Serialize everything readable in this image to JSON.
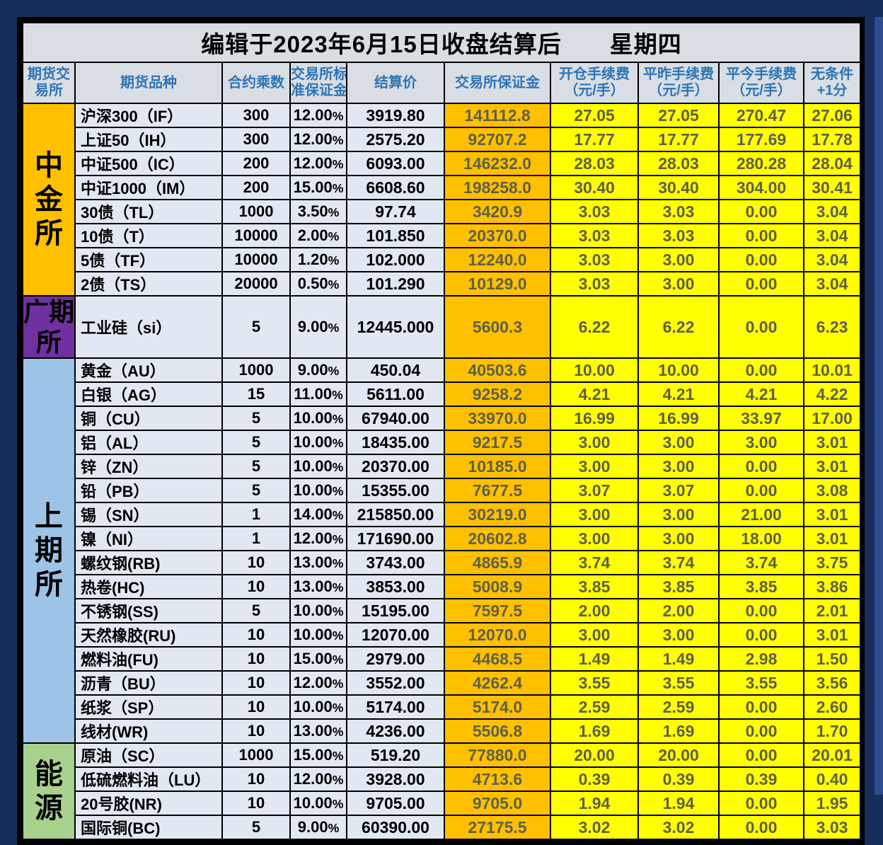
{
  "title": "编辑于2023年6月15日收盘结算后　　星期四",
  "columns": [
    {
      "id": "exchange",
      "lines": [
        "期货交",
        "易所"
      ]
    },
    {
      "id": "product",
      "lines": [
        "期货品种"
      ]
    },
    {
      "id": "multiplier",
      "lines": [
        "合约乘数"
      ]
    },
    {
      "id": "std-margin-rate",
      "lines": [
        "交易所标",
        "准保证金"
      ]
    },
    {
      "id": "settlement-price",
      "lines": [
        "结算价"
      ]
    },
    {
      "id": "exchange-margin",
      "lines": [
        "交易所保证金"
      ]
    },
    {
      "id": "open-fee",
      "lines": [
        "开仓手续费",
        "（元/手）"
      ]
    },
    {
      "id": "close-yesterday-fee",
      "lines": [
        "平昨手续费",
        "（元/手）"
      ]
    },
    {
      "id": "close-today-fee",
      "lines": [
        "平今手续费",
        "（元/手）"
      ]
    },
    {
      "id": "unconditional-plus1",
      "lines": [
        "无条件",
        "+1分"
      ]
    }
  ],
  "colors": {
    "page_bg": "#172E5C",
    "right_strip": "#2C4C8E",
    "header_bg": "#D9DDE4",
    "header_text": "#2E75B6",
    "data_bg": "#E1E8F1",
    "margin_col_bg": "#FFC000",
    "fee_col_bg": "#FFFF00",
    "fee_text": "#5E6047",
    "group_cffex": "#FFC000",
    "group_gfex": "#7030A0",
    "group_shfe": "#9DC3E6",
    "group_ine": "#A9D18E"
  },
  "groups": [
    {
      "name": "中金所",
      "label_lines": [
        "中",
        "金",
        "所"
      ],
      "color": "#FFC000",
      "rows": [
        [
          "沪深300（IF）",
          "300",
          "12.00%",
          "3919.80",
          "141112.8",
          "27.05",
          "27.05",
          "270.47",
          "27.06"
        ],
        [
          "上证50（IH）",
          "300",
          "12.00%",
          "2575.20",
          "92707.2",
          "17.77",
          "17.77",
          "177.69",
          "17.78"
        ],
        [
          "中证500（IC）",
          "200",
          "12.00%",
          "6093.00",
          "146232.0",
          "28.03",
          "28.03",
          "280.28",
          "28.04"
        ],
        [
          "中证1000（IM）",
          "200",
          "15.00%",
          "6608.60",
          "198258.0",
          "30.40",
          "30.40",
          "304.00",
          "30.41"
        ],
        [
          "30债（TL）",
          "1000",
          "3.50%",
          "97.74",
          "3420.9",
          "3.03",
          "3.03",
          "0.00",
          "3.04"
        ],
        [
          "10债（T）",
          "10000",
          "2.00%",
          "101.850",
          "20370.0",
          "3.03",
          "3.03",
          "0.00",
          "3.04"
        ],
        [
          "5债（TF）",
          "10000",
          "1.20%",
          "102.000",
          "12240.0",
          "3.03",
          "3.00",
          "0.00",
          "3.04"
        ],
        [
          "2债（TS）",
          "20000",
          "0.50%",
          "101.290",
          "10129.0",
          "3.03",
          "3.00",
          "0.00",
          "3.04"
        ]
      ]
    },
    {
      "name": "广期所",
      "label_lines": [
        "广期",
        "所"
      ],
      "color": "#7030A0",
      "rows": [
        [
          "工业硅（si）",
          "5",
          "9.00%",
          "12445.000",
          "5600.3",
          "6.22",
          "6.22",
          "0.00",
          "6.23"
        ]
      ]
    },
    {
      "name": "上期所",
      "label_lines": [
        "上",
        "期",
        "所"
      ],
      "color": "#9DC3E6",
      "rows": [
        [
          "黄金（AU）",
          "1000",
          "9.00%",
          "450.04",
          "40503.6",
          "10.00",
          "10.00",
          "0.00",
          "10.01"
        ],
        [
          "白银（AG）",
          "15",
          "11.00%",
          "5611.00",
          "9258.2",
          "4.21",
          "4.21",
          "4.21",
          "4.22"
        ],
        [
          "铜（CU）",
          "5",
          "10.00%",
          "67940.00",
          "33970.0",
          "16.99",
          "16.99",
          "33.97",
          "17.00"
        ],
        [
          "铝（AL）",
          "5",
          "10.00%",
          "18435.00",
          "9217.5",
          "3.00",
          "3.00",
          "3.00",
          "3.01"
        ],
        [
          "锌（ZN）",
          "5",
          "10.00%",
          "20370.00",
          "10185.0",
          "3.00",
          "3.00",
          "0.00",
          "3.01"
        ],
        [
          "铅（PB）",
          "5",
          "10.00%",
          "15355.00",
          "7677.5",
          "3.07",
          "3.07",
          "0.00",
          "3.08"
        ],
        [
          "锡（SN）",
          "1",
          "14.00%",
          "215850.00",
          "30219.0",
          "3.00",
          "3.00",
          "21.00",
          "3.01"
        ],
        [
          "镍（NI）",
          "1",
          "12.00%",
          "171690.00",
          "20602.8",
          "3.00",
          "3.00",
          "18.00",
          "3.01"
        ],
        [
          "螺纹钢(RB)",
          "10",
          "13.00%",
          "3743.00",
          "4865.9",
          "3.74",
          "3.74",
          "3.74",
          "3.75"
        ],
        [
          "热卷(HC)",
          "10",
          "13.00%",
          "3853.00",
          "5008.9",
          "3.85",
          "3.85",
          "3.85",
          "3.86"
        ],
        [
          "不锈钢(SS)",
          "5",
          "10.00%",
          "15195.00",
          "7597.5",
          "2.00",
          "2.00",
          "0.00",
          "2.01"
        ],
        [
          "天然橡胶(RU)",
          "10",
          "10.00%",
          "12070.00",
          "12070.0",
          "3.00",
          "3.00",
          "0.00",
          "3.01"
        ],
        [
          "燃料油(FU)",
          "10",
          "15.00%",
          "2979.00",
          "4468.5",
          "1.49",
          "1.49",
          "2.98",
          "1.50"
        ],
        [
          "沥青（BU）",
          "10",
          "12.00%",
          "3552.00",
          "4262.4",
          "3.55",
          "3.55",
          "3.55",
          "3.56"
        ],
        [
          "纸浆（SP）",
          "10",
          "10.00%",
          "5174.00",
          "5174.0",
          "2.59",
          "2.59",
          "0.00",
          "2.60"
        ],
        [
          "线材(WR)",
          "10",
          "13.00%",
          "4236.00",
          "5506.8",
          "1.69",
          "1.69",
          "0.00",
          "1.70"
        ]
      ]
    },
    {
      "name": "能源",
      "label_lines": [
        "能",
        "源"
      ],
      "color": "#A9D18E",
      "rows": [
        [
          "原油（SC）",
          "1000",
          "15.00%",
          "519.20",
          "77880.0",
          "20.00",
          "20.00",
          "0.00",
          "20.01"
        ],
        [
          "低硫燃料油（LU）",
          "10",
          "12.00%",
          "3928.00",
          "4713.6",
          "0.39",
          "0.39",
          "0.39",
          "0.40"
        ],
        [
          "20号胶(NR)",
          "10",
          "10.00%",
          "9705.00",
          "9705.0",
          "1.94",
          "1.94",
          "0.00",
          "1.95"
        ],
        [
          "国际铜(BC)",
          "5",
          "9.00%",
          "60390.00",
          "27175.5",
          "3.02",
          "3.02",
          "0.00",
          "3.03"
        ]
      ]
    }
  ]
}
